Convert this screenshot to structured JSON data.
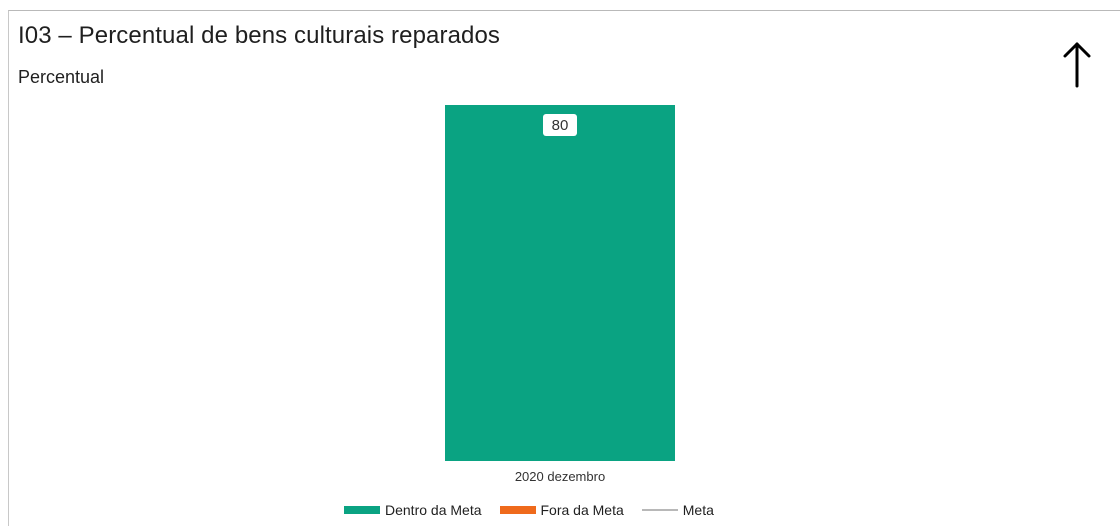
{
  "header": {
    "title": "I03 – Percentual de bens culturais reparados",
    "subtitle": "Percentual",
    "trend_icon": "arrow-up-icon"
  },
  "colors": {
    "dentro": "#0aa382",
    "fora": "#ef6a1c",
    "meta": "#b8b8b8",
    "label_bg": "#ffffff"
  },
  "chart_data": {
    "type": "bar",
    "title": "I03 – Percentual de bens culturais reparados",
    "subtitle": "Percentual",
    "categories": [
      "2020 dezembro"
    ],
    "series": [
      {
        "name": "Dentro da Meta",
        "values": [
          80
        ]
      },
      {
        "name": "Fora da Meta",
        "values": [
          0
        ]
      }
    ],
    "meta_line": {
      "name": "Meta",
      "values": []
    },
    "data_labels": [
      "80"
    ],
    "ylim": [
      0,
      80
    ],
    "grid": false,
    "legend": "bottom-center"
  },
  "legend": {
    "items": [
      {
        "label": "Dentro da Meta",
        "kind": "bar"
      },
      {
        "label": "Fora da Meta",
        "kind": "bar"
      },
      {
        "label": "Meta",
        "kind": "line"
      }
    ]
  }
}
